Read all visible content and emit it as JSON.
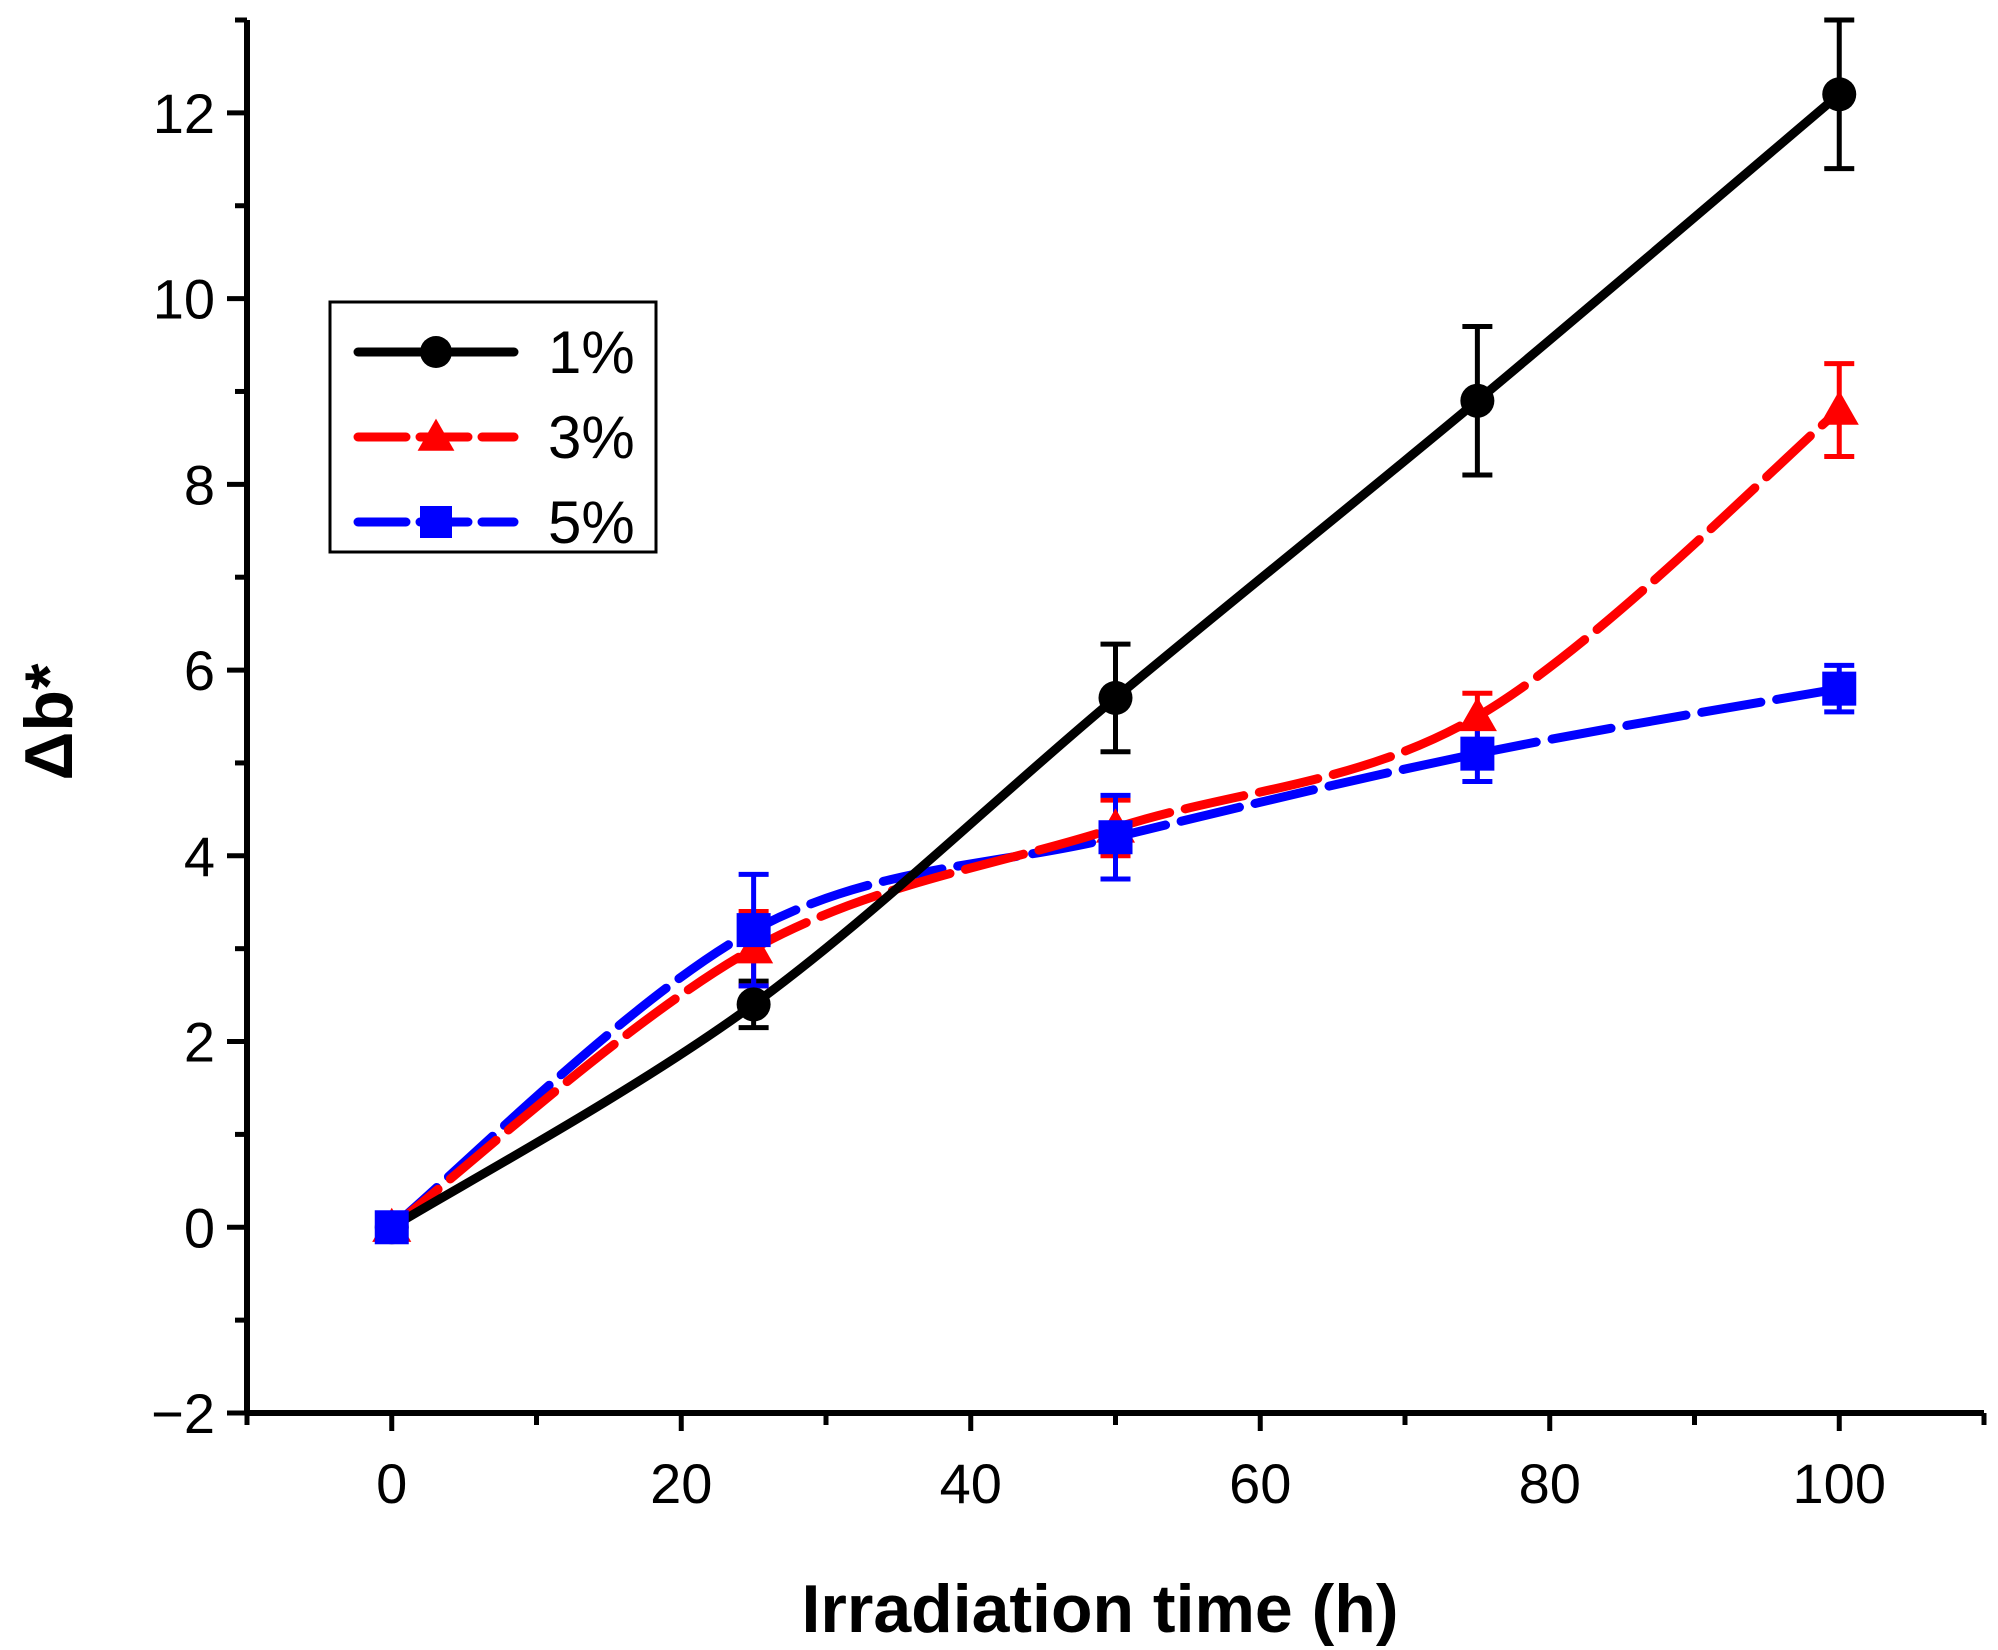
{
  "chart_data": {
    "type": "line",
    "xlabel": "Irradiation time (h)",
    "ylabel": "Δb*",
    "xlim": [
      -10,
      110
    ],
    "ylim": [
      -2,
      13
    ],
    "x_ticks": [
      0,
      20,
      40,
      60,
      80,
      100
    ],
    "y_ticks": [
      -2,
      0,
      2,
      4,
      6,
      8,
      10,
      12
    ],
    "grid": false,
    "legend_position": "upper-left",
    "x": [
      0,
      25,
      50,
      75,
      100
    ],
    "series": [
      {
        "name": "1%",
        "color": "#000000",
        "marker": "circle",
        "dashed": false,
        "values": [
          0,
          2.4,
          5.7,
          8.9,
          12.2
        ],
        "errors": [
          0,
          0.25,
          0.58,
          0.8,
          0.8
        ]
      },
      {
        "name": "3%",
        "color": "#ff0000",
        "marker": "triangle",
        "dashed": true,
        "values": [
          0,
          3.0,
          4.3,
          5.5,
          8.8
        ],
        "errors": [
          0,
          0.4,
          0.3,
          0.25,
          0.5
        ]
      },
      {
        "name": "5%",
        "color": "#0000ff",
        "marker": "square",
        "dashed": true,
        "values": [
          0,
          3.2,
          4.2,
          5.1,
          5.8
        ],
        "errors": [
          0,
          0.6,
          0.45,
          0.3,
          0.25
        ]
      }
    ]
  }
}
